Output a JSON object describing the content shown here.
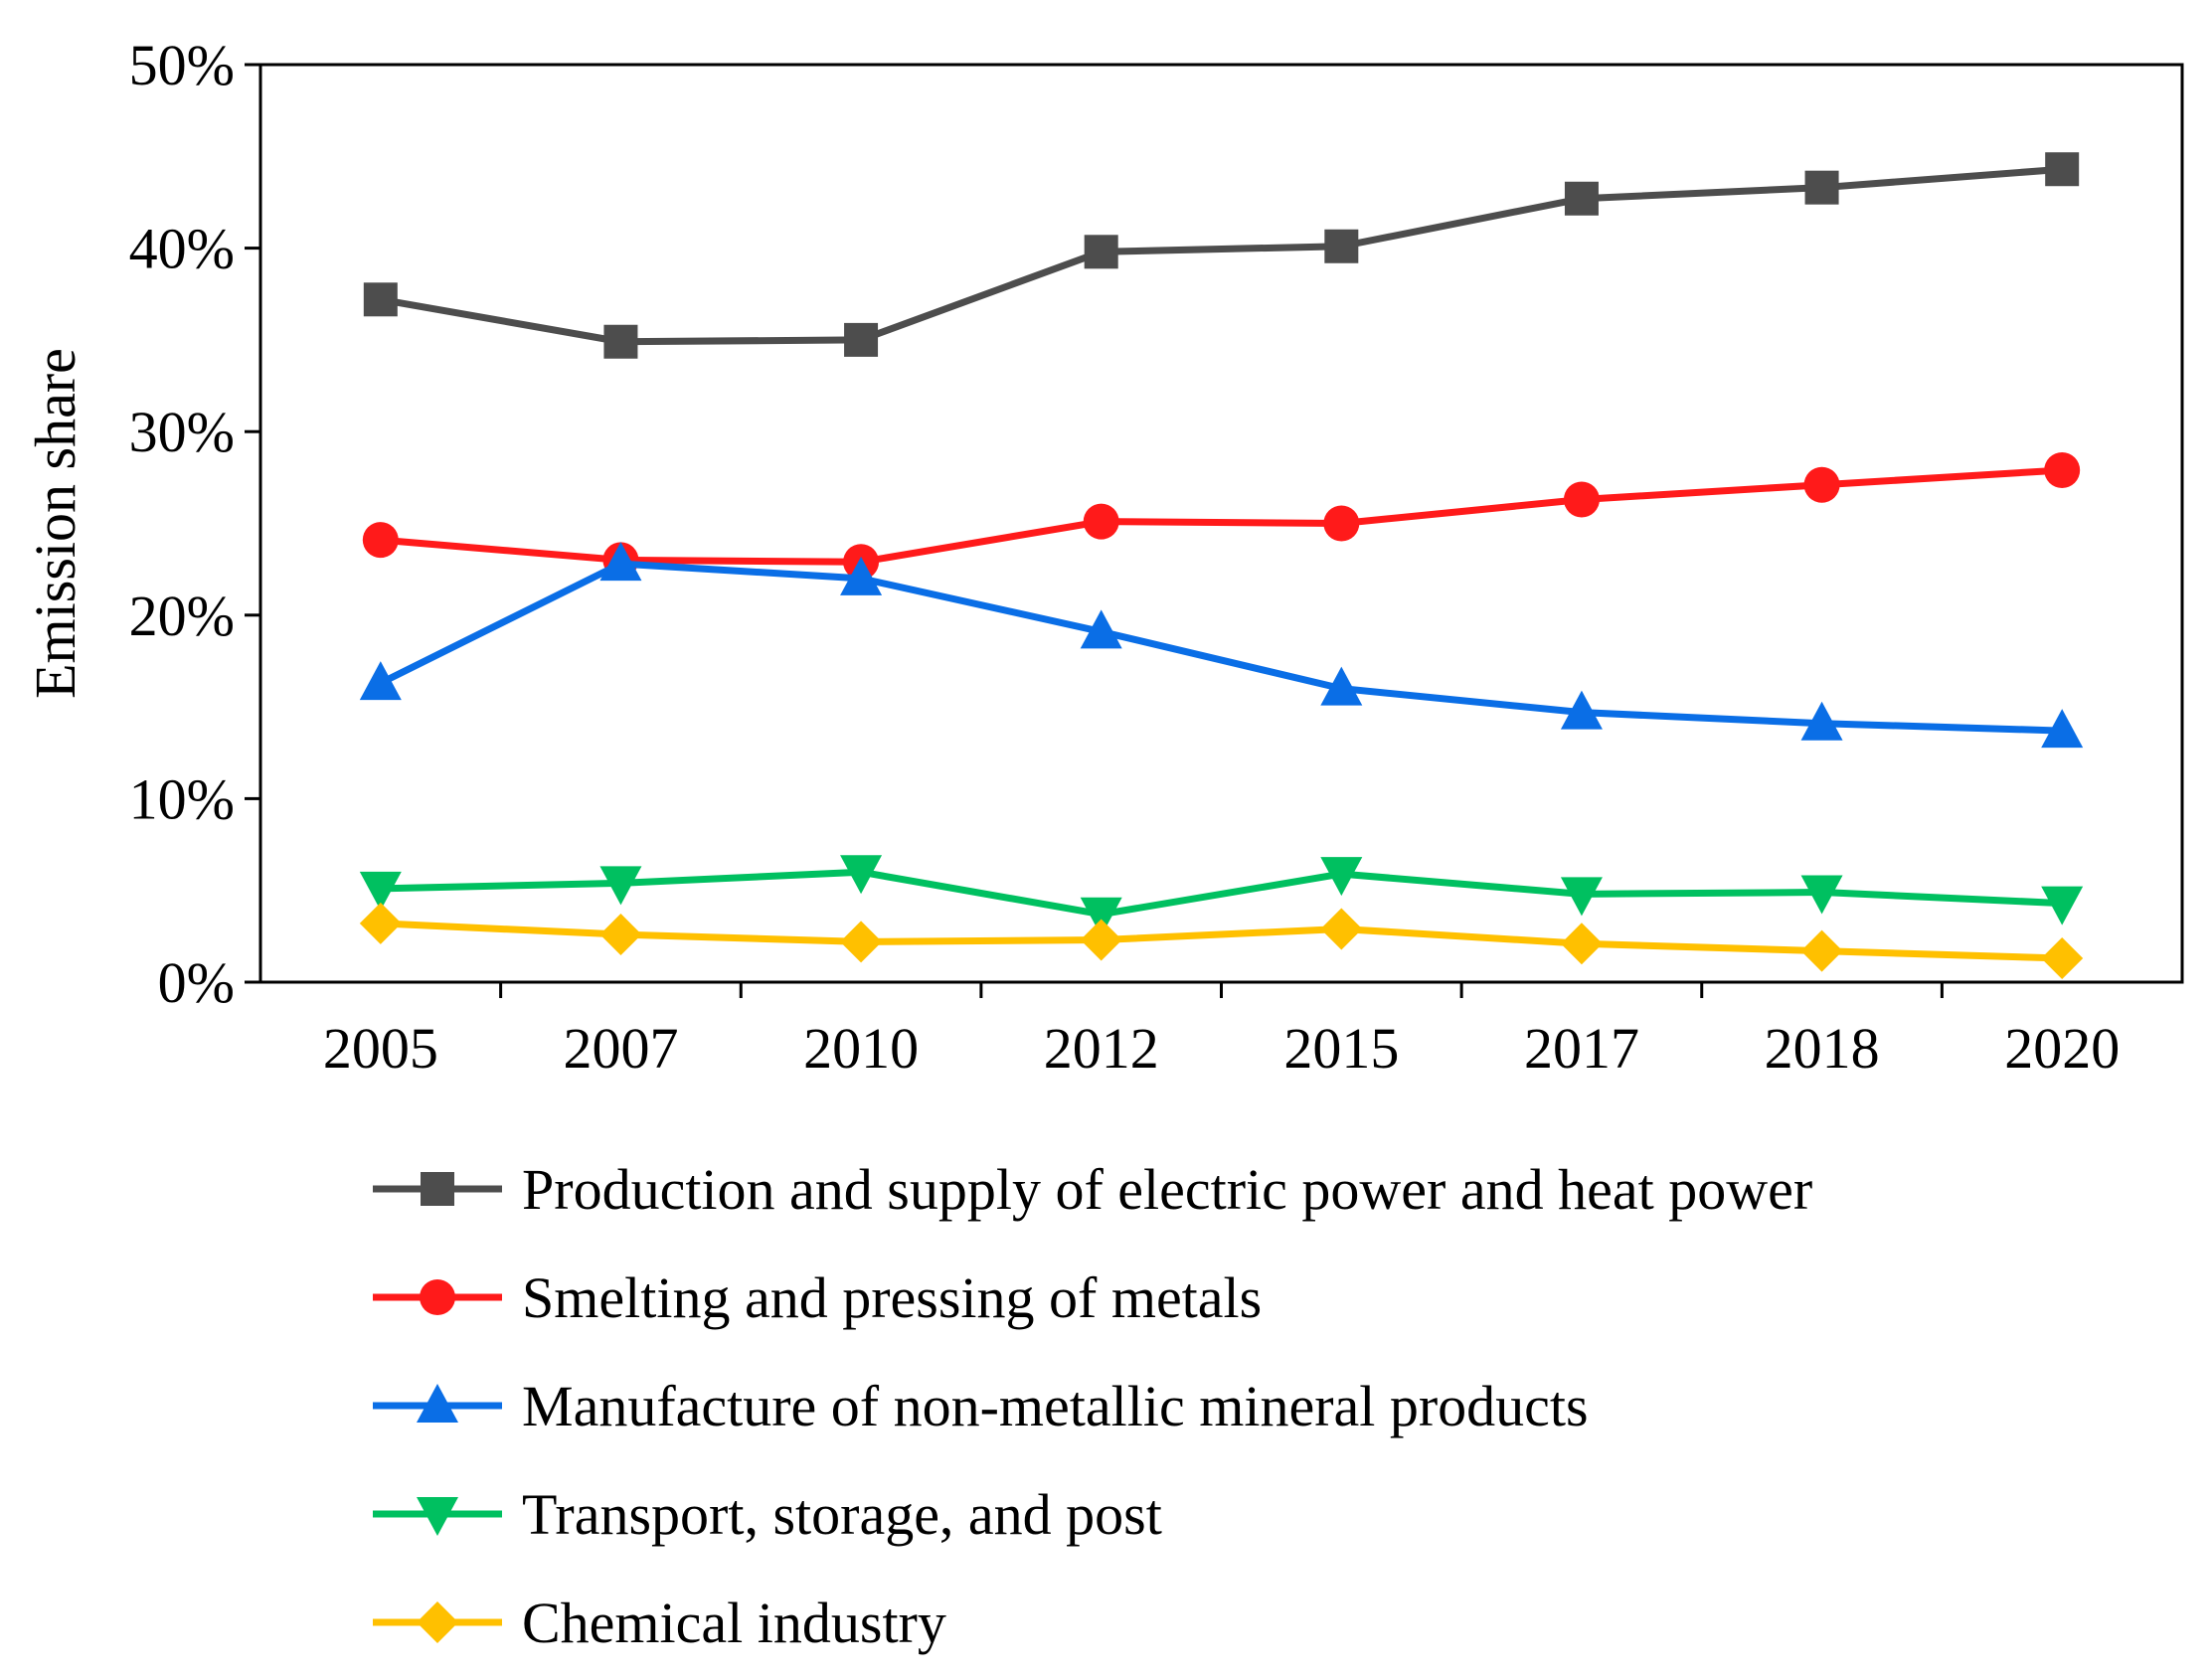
{
  "chart_data": {
    "type": "line",
    "title": "",
    "xlabel": "",
    "ylabel": "Emission share",
    "ylim": [
      0,
      50
    ],
    "y_tick_values": [
      0,
      10,
      20,
      30,
      40,
      50
    ],
    "y_tick_labels": [
      "0%",
      "10%",
      "20%",
      "30%",
      "40%",
      "50%"
    ],
    "categories": [
      "2005",
      "2007",
      "2010",
      "2012",
      "2015",
      "2017",
      "2018",
      "2020"
    ],
    "grid": false,
    "legend_position": "bottom",
    "series": [
      {
        "name": "Production and supply of electric power and heat power",
        "color": "#4d4d4d",
        "marker": "square",
        "values": [
          37.2,
          34.9,
          35.0,
          39.8,
          40.1,
          42.7,
          43.3,
          44.3
        ]
      },
      {
        "name": "Smelting and pressing of metals",
        "color": "#ff1a1a",
        "marker": "circle",
        "values": [
          24.1,
          23.0,
          22.9,
          25.1,
          25.0,
          26.3,
          27.1,
          27.9
        ]
      },
      {
        "name": "Manufacture of non-metallic mineral products",
        "color": "#0a6ee6",
        "marker": "triangle-up",
        "values": [
          16.3,
          22.8,
          22.0,
          19.1,
          16.0,
          14.7,
          14.1,
          13.7
        ]
      },
      {
        "name": "Transport, storage, and post",
        "color": "#00c060",
        "marker": "triangle-down",
        "values": [
          5.1,
          5.4,
          6.0,
          3.7,
          5.9,
          4.8,
          4.9,
          4.3
        ]
      },
      {
        "name": "Chemical industry",
        "color": "#ffc000",
        "marker": "diamond",
        "values": [
          3.2,
          2.6,
          2.2,
          2.3,
          2.9,
          2.1,
          1.7,
          1.3
        ]
      }
    ]
  }
}
